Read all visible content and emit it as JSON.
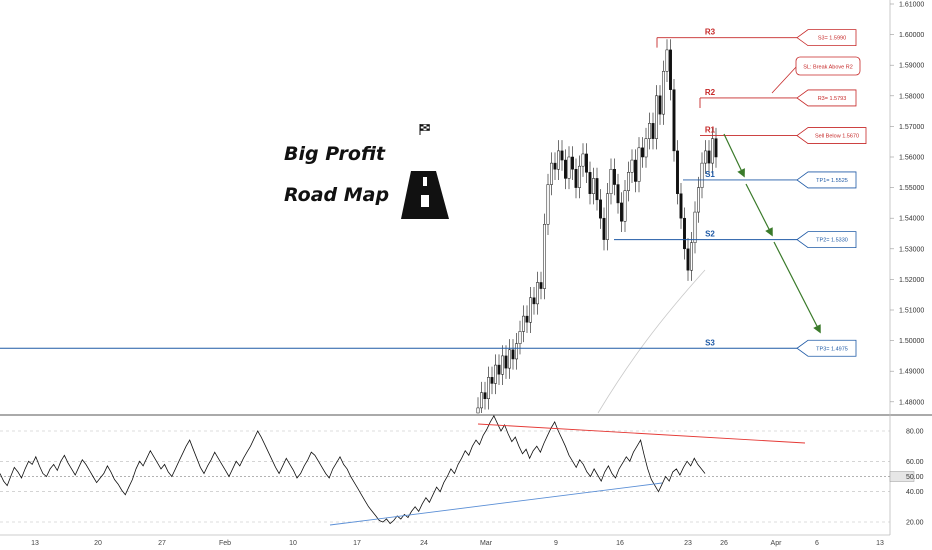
{
  "header": {
    "title_line1": "Big Profit",
    "title_line2": "Road Map",
    "flag_icon": "checkered-flag-icon",
    "road_icon": "road-icon"
  },
  "colors": {
    "resistance": "#c62828",
    "support": "#1f5aa6",
    "projection": "#3a7a2a",
    "candle": "#111111",
    "rsi_line": "#111111",
    "rsi_trend_down": "#e53935",
    "rsi_trend_up": "#5b8fd6"
  },
  "chart_data": [
    {
      "type": "candlestick",
      "title": "",
      "ylim": [
        1.475,
        1.61
      ],
      "y_ticks": [
        "1.61000",
        "1.60000",
        "1.59000",
        "1.58000",
        "1.57000",
        "1.56000",
        "1.55000",
        "1.54000",
        "1.53000",
        "1.52000",
        "1.51000",
        "1.50000",
        "1.49000",
        "1.48000"
      ],
      "x_ticks": [
        "13",
        "20",
        "27",
        "Feb",
        "10",
        "17",
        "24",
        "Mar",
        "9",
        "16",
        "23",
        "26",
        "Apr",
        "6",
        "13"
      ],
      "levels": [
        {
          "label": "R3",
          "value": 1.599,
          "tag": "S3= 1.5990",
          "color": "red"
        },
        {
          "label": "R2",
          "value": 1.5793,
          "tag": "R3= 1.5793",
          "color": "red"
        },
        {
          "label": "R1",
          "value": 1.567,
          "tag": "Sell Below 1.5670",
          "color": "red"
        },
        {
          "label": "S1",
          "value": 1.5525,
          "tag": "TP1= 1.5525",
          "color": "blue"
        },
        {
          "label": "S2",
          "value": 1.533,
          "tag": "TP2= 1.5330",
          "color": "blue"
        },
        {
          "label": "S3",
          "value": 1.4975,
          "tag": "TP3= 1.4975",
          "color": "blue"
        }
      ],
      "annotation": "SL: Break Above R2",
      "candles_close": [
        1.478,
        1.483,
        1.481,
        1.488,
        1.486,
        1.492,
        1.489,
        1.495,
        1.491,
        1.497,
        1.494,
        1.499,
        1.503,
        1.508,
        1.506,
        1.514,
        1.512,
        1.519,
        1.517,
        1.538,
        1.551,
        1.558,
        1.556,
        1.562,
        1.559,
        1.553,
        1.56,
        1.556,
        1.55,
        1.557,
        1.561,
        1.555,
        1.548,
        1.553,
        1.546,
        1.54,
        1.533,
        1.548,
        1.556,
        1.551,
        1.545,
        1.539,
        1.549,
        1.555,
        1.559,
        1.552,
        1.563,
        1.56,
        1.566,
        1.571,
        1.566,
        1.58,
        1.574,
        1.588,
        1.595,
        1.582,
        1.562,
        1.548,
        1.54,
        1.53,
        1.523,
        1.532,
        1.542,
        1.55,
        1.558,
        1.562,
        1.558,
        1.566,
        1.56
      ]
    },
    {
      "type": "line",
      "title": "",
      "ylim": [
        15,
        95
      ],
      "y_ticks": [
        "80.00",
        "60.00",
        "50.00",
        "40.00",
        "20.00"
      ],
      "highlighted_value": "50.00",
      "rsi_values": [
        52,
        47,
        44,
        50,
        56,
        53,
        49,
        55,
        60,
        58,
        63,
        57,
        52,
        50,
        55,
        58,
        54,
        60,
        64,
        59,
        55,
        51,
        56,
        61,
        58,
        54,
        50,
        46,
        49,
        52,
        57,
        53,
        48,
        45,
        41,
        38,
        43,
        48,
        55,
        60,
        57,
        62,
        67,
        63,
        59,
        55,
        58,
        53,
        50,
        55,
        60,
        65,
        70,
        74,
        68,
        62,
        56,
        52,
        57,
        61,
        66,
        62,
        58,
        54,
        50,
        55,
        60,
        57,
        62,
        66,
        70,
        75,
        80,
        76,
        71,
        66,
        61,
        56,
        52,
        57,
        62,
        58,
        54,
        49,
        52,
        57,
        61,
        66,
        64,
        60,
        56,
        52,
        49,
        55,
        59,
        63,
        58,
        55,
        50,
        46,
        42,
        38,
        34,
        30,
        27,
        24,
        21,
        20,
        22,
        19,
        21,
        24,
        22,
        25,
        23,
        27,
        30,
        27,
        32,
        36,
        33,
        38,
        43,
        40,
        46,
        50,
        55,
        52,
        58,
        62,
        67,
        64,
        70,
        74,
        71,
        77,
        81,
        86,
        90,
        85,
        80,
        84,
        78,
        73,
        76,
        70,
        65,
        68,
        62,
        67,
        70,
        66,
        72,
        77,
        82,
        86,
        80,
        75,
        70,
        64,
        60,
        56,
        61,
        58,
        53,
        50,
        55,
        51,
        47,
        53,
        57,
        52,
        49,
        55,
        59,
        63,
        60,
        66,
        70,
        74,
        64,
        55,
        48,
        44,
        40,
        45,
        50,
        47,
        53,
        55,
        51,
        56,
        60,
        57,
        62,
        58,
        55,
        52
      ],
      "trendlines": [
        "bearish-divergence",
        "bullish-support"
      ]
    }
  ]
}
